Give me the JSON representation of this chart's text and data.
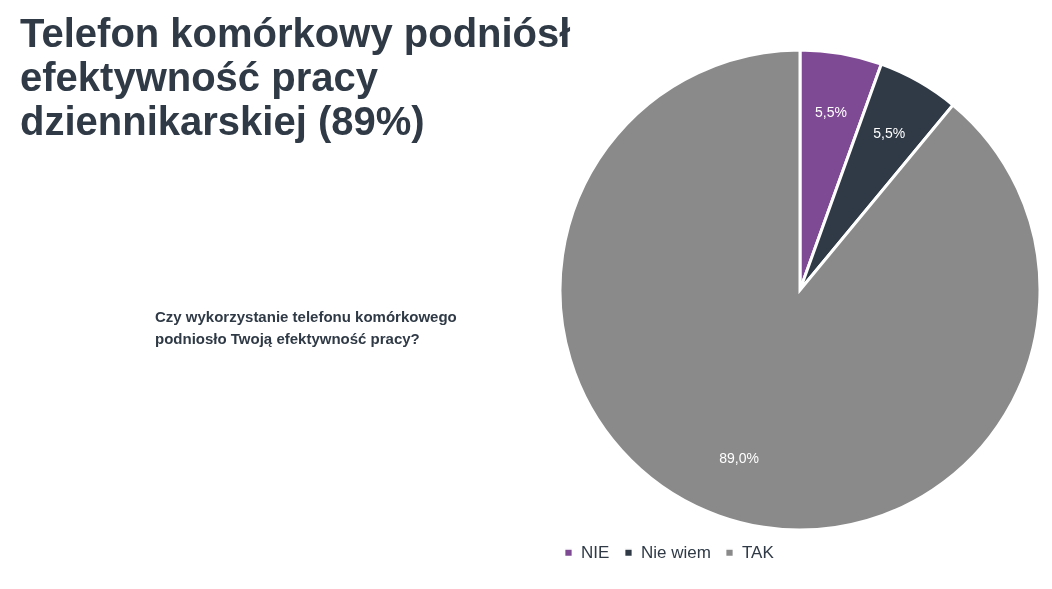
{
  "chart_data": {
    "type": "pie",
    "title": "Telefon komórkowy podniósł efektywność pracy dziennikarskiej (89%)",
    "subtitle": "Czy wykorzystanie telefonu komórkowego podniosło Twoją efektywność pracy?",
    "categories": [
      "NIE",
      "Nie wiem",
      "TAK"
    ],
    "values": [
      5.5,
      5.5,
      89.0
    ],
    "colors": [
      "#7f4a94",
      "#2f3a46",
      "#8a8a8a"
    ],
    "value_labels": [
      "5,5%",
      "5,5%",
      "89,0%"
    ],
    "legend": "bottom"
  }
}
